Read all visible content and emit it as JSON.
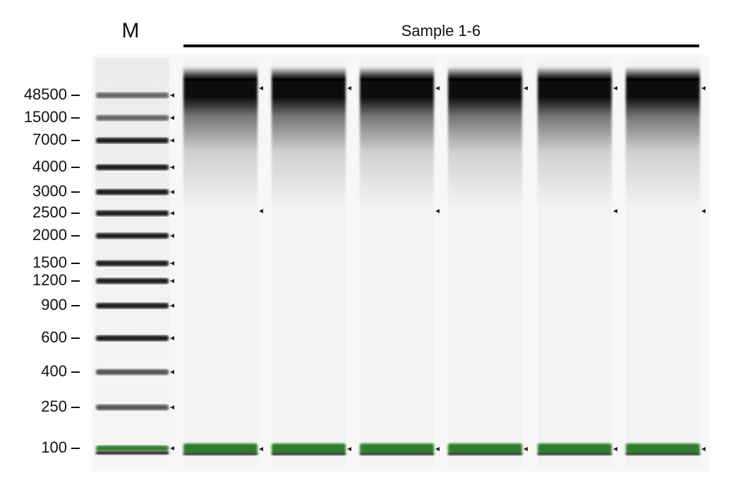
{
  "lanes": {
    "marker": "M",
    "samples": "Sample 1-6"
  },
  "ladder_labels": [
    "48500",
    "15000",
    "7000",
    "4000",
    "3000",
    "2500",
    "2000",
    "1500",
    "1200",
    "900",
    "600",
    "400",
    "250",
    "100"
  ]
}
